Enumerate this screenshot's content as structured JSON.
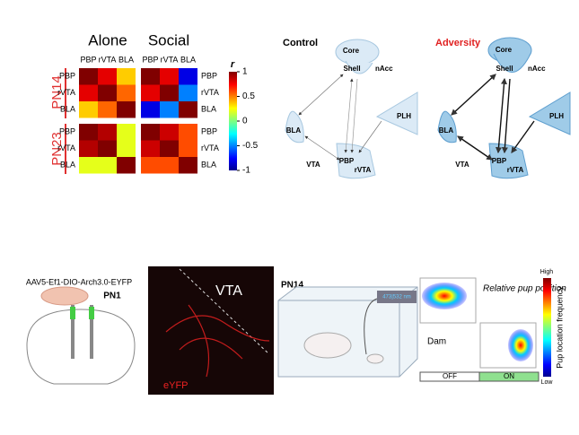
{
  "heatmap": {
    "columns": [
      "Alone",
      "Social"
    ],
    "col_labels": [
      "PBP",
      "rVTA",
      "BLA"
    ],
    "row_groups": [
      "PN14",
      "PN23"
    ],
    "row_labels": [
      "PBP",
      "rVTA",
      "BLA"
    ],
    "values": [
      [
        [
          [
            1,
            0.8,
            0.35
          ],
          [
            0.8,
            1,
            0.55
          ],
          [
            0.35,
            0.55,
            1
          ]
        ],
        [
          [
            1,
            0.8,
            -0.8
          ],
          [
            0.8,
            1,
            -0.5
          ],
          [
            -0.8,
            -0.5,
            1
          ]
        ]
      ],
      [
        [
          [
            1,
            0.9,
            0.2
          ],
          [
            0.9,
            1,
            0.2
          ],
          [
            0.2,
            0.2,
            1
          ]
        ],
        [
          [
            1,
            0.85,
            0.6
          ],
          [
            0.85,
            1,
            0.6
          ],
          [
            0.6,
            0.6,
            1
          ]
        ]
      ]
    ],
    "colorbar": {
      "label": "r",
      "lim": [
        -1,
        1
      ],
      "ticks": [
        1,
        0.5,
        0,
        -0.5,
        -1
      ]
    }
  },
  "networks": [
    {
      "title": "Control",
      "core": "Core",
      "shell": "Shell",
      "nacc": "nAcc",
      "bla": "BLA",
      "plh": "PLH",
      "vta": "VTA",
      "pbp": "PBP",
      "rvta": "rVTA"
    },
    {
      "title": "Adversity",
      "core": "Core",
      "shell": "Shell",
      "nacc": "nAcc",
      "bla": "BLA",
      "plh": "PLH",
      "vta": "VTA",
      "pbp": "PBP",
      "rvta": "rVTA"
    }
  ],
  "experiment": {
    "virus": "AAV5-Ef1-DIO-Arch3.0-EYFP",
    "age1": "PN1",
    "image_label": "VTA",
    "fluor_label": "eYFP",
    "age2": "PN14",
    "laser": "473|532 nm",
    "position_label": "Relative pup position",
    "dam": "Dam",
    "scale_high": "High",
    "scale_low": "Low",
    "scale_title": "Pup location frequency",
    "off": "OFF",
    "on": "ON"
  }
}
